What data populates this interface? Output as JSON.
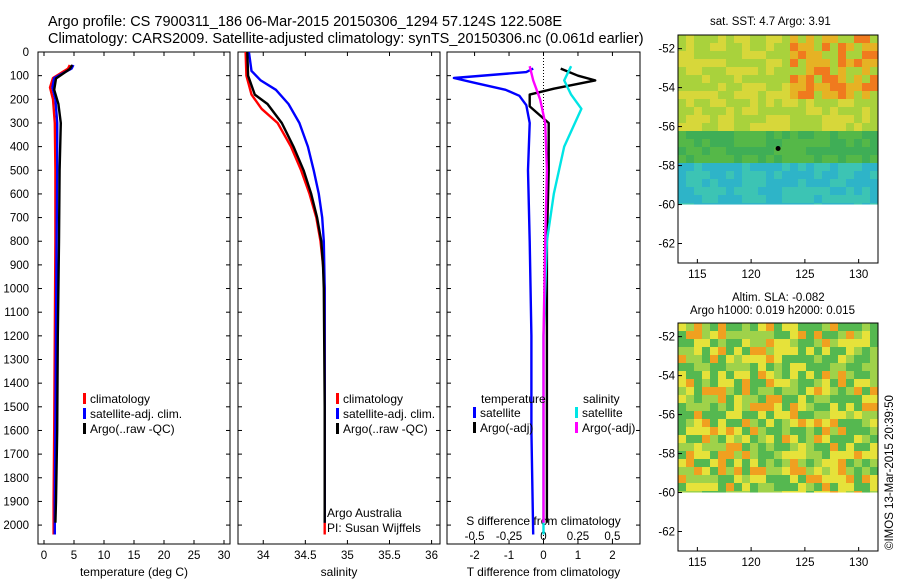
{
  "header": {
    "line1": "Argo profile: CS 7900311_186 06-Mar-2015 20150306_1294 57.124S 122.508E",
    "line2": "Climatology: CARS2009. Satellite-adjusted climatology: synTS_20150306.nc (0.061d earlier)"
  },
  "colors": {
    "climatology": "#ff0000",
    "satellite": "#0000ff",
    "argo": "#000000",
    "sal_satellite": "#00e5e5",
    "sal_argo": "#ff00ff"
  },
  "depth_ticks": [
    0,
    100,
    200,
    300,
    400,
    500,
    600,
    700,
    800,
    900,
    1000,
    1100,
    1200,
    1300,
    1400,
    1500,
    1600,
    1700,
    1800,
    1900,
    2000
  ],
  "chart_data": [
    {
      "type": "line",
      "xlabel": "temperature (deg C)",
      "xlim": [
        -1,
        31
      ],
      "ylim": [
        2080,
        0
      ],
      "xticks": [
        0,
        5,
        10,
        15,
        20,
        25,
        30
      ],
      "legend": [
        "climatology",
        "satellite-adj. clim.",
        "Argo(..raw -QC)"
      ],
      "series": [
        {
          "name": "climatology",
          "key": "climatology",
          "points": [
            [
              4.3,
              55
            ],
            [
              4.0,
              70
            ],
            [
              1.5,
              110
            ],
            [
              1.0,
              150
            ],
            [
              1.5,
              200
            ],
            [
              1.8,
              300
            ],
            [
              1.9,
              500
            ],
            [
              1.9,
              800
            ],
            [
              1.8,
              1200
            ],
            [
              1.7,
              1600
            ],
            [
              1.6,
              1900
            ],
            [
              1.6,
              2040
            ]
          ]
        },
        {
          "name": "satellite-adj. clim.",
          "key": "satellite",
          "points": [
            [
              4.9,
              55
            ],
            [
              4.6,
              70
            ],
            [
              1.7,
              110
            ],
            [
              1.4,
              150
            ],
            [
              1.9,
              200
            ],
            [
              2.2,
              300
            ],
            [
              2.2,
              500
            ],
            [
              2.1,
              800
            ],
            [
              2.0,
              1200
            ],
            [
              1.9,
              1600
            ],
            [
              1.8,
              1900
            ],
            [
              1.8,
              2040
            ]
          ]
        },
        {
          "name": "Argo(..raw -QC)",
          "key": "argo",
          "points": [
            [
              4.7,
              55
            ],
            [
              4.3,
              72
            ],
            [
              2.0,
              112
            ],
            [
              1.7,
              160
            ],
            [
              2.4,
              220
            ],
            [
              2.8,
              300
            ],
            [
              2.6,
              500
            ],
            [
              2.5,
              800
            ],
            [
              2.3,
              1200
            ],
            [
              2.2,
              1600
            ],
            [
              2.0,
              1900
            ],
            [
              1.9,
              1990
            ]
          ]
        }
      ]
    },
    {
      "type": "line",
      "xlabel": "salinity",
      "xlim": [
        33.7,
        36.1
      ],
      "ylim": [
        2080,
        0
      ],
      "xticks": [
        34,
        34.5,
        35,
        35.5,
        36
      ],
      "xtick_labels": [
        "34",
        "34.5",
        "35",
        "35.5",
        "36"
      ],
      "legend": [
        "climatology",
        "satellite-adj. clim.",
        "Argo(..raw -QC)"
      ],
      "annotations": [
        "Argo Australia",
        "PI: Susan Wijffels"
      ],
      "series": [
        {
          "name": "climatology",
          "key": "climatology",
          "points": [
            [
              33.79,
              0
            ],
            [
              33.8,
              100
            ],
            [
              33.86,
              180
            ],
            [
              33.98,
              240
            ],
            [
              34.17,
              300
            ],
            [
              34.33,
              400
            ],
            [
              34.45,
              500
            ],
            [
              34.55,
              600
            ],
            [
              34.63,
              700
            ],
            [
              34.68,
              800
            ],
            [
              34.71,
              900
            ],
            [
              34.73,
              1000
            ],
            [
              34.73,
              1200
            ],
            [
              34.73,
              1600
            ],
            [
              34.73,
              2040
            ]
          ]
        },
        {
          "name": "satellite-adj. clim.",
          "key": "satellite",
          "points": [
            [
              33.83,
              0
            ],
            [
              33.86,
              80
            ],
            [
              33.97,
              120
            ],
            [
              34.15,
              160
            ],
            [
              34.3,
              220
            ],
            [
              34.43,
              300
            ],
            [
              34.53,
              400
            ],
            [
              34.6,
              500
            ],
            [
              34.66,
              600
            ],
            [
              34.7,
              700
            ],
            [
              34.72,
              800
            ],
            [
              34.73,
              1000
            ],
            [
              34.73,
              1600
            ],
            [
              34.73,
              1990
            ]
          ]
        },
        {
          "name": "Argo(..raw -QC)",
          "key": "argo",
          "points": [
            [
              33.81,
              0
            ],
            [
              33.82,
              100
            ],
            [
              33.9,
              180
            ],
            [
              34.05,
              220
            ],
            [
              34.22,
              300
            ],
            [
              34.36,
              400
            ],
            [
              34.48,
              500
            ],
            [
              34.57,
              600
            ],
            [
              34.64,
              700
            ],
            [
              34.69,
              800
            ],
            [
              34.71,
              900
            ],
            [
              34.72,
              1000
            ],
            [
              34.73,
              1500
            ],
            [
              34.73,
              1990
            ]
          ]
        }
      ]
    },
    {
      "type": "line",
      "xlabel": "T difference from climatology",
      "xlabel_top": "S difference from climatology",
      "xlim": [
        -2.8,
        2.8
      ],
      "ylim": [
        2080,
        0
      ],
      "xticks": [
        -2,
        -1,
        0,
        1,
        2
      ],
      "xticks_top": [
        "-0.5",
        "-0.25",
        "0",
        "0.25",
        "0.5"
      ],
      "legend_groups": [
        "temperature",
        "salinity"
      ],
      "legend": [
        "satellite",
        "Argo(-adj)",
        "satellite",
        "Argo(-adj)"
      ],
      "series": [
        {
          "name": "satellite",
          "group": "temperature",
          "key": "satellite",
          "points": [
            [
              -0.3,
              70
            ],
            [
              -0.5,
              85
            ],
            [
              -2.6,
              110
            ],
            [
              -2.0,
              130
            ],
            [
              -1.1,
              160
            ],
            [
              -0.7,
              185
            ],
            [
              -0.5,
              225
            ],
            [
              -0.4,
              300
            ],
            [
              -0.45,
              500
            ],
            [
              -0.4,
              800
            ],
            [
              -0.35,
              1200
            ],
            [
              -0.35,
              1600
            ],
            [
              -0.3,
              2040
            ]
          ]
        },
        {
          "name": "Argo(-adj)",
          "group": "temperature",
          "key": "argo",
          "points": [
            [
              0.5,
              70
            ],
            [
              1.0,
              100
            ],
            [
              1.5,
              120
            ],
            [
              0.3,
              155
            ],
            [
              -0.4,
              180
            ],
            [
              -0.4,
              230
            ],
            [
              0.15,
              300
            ],
            [
              0.15,
              500
            ],
            [
              0.1,
              800
            ],
            [
              0.1,
              1200
            ],
            [
              0.1,
              1600
            ],
            [
              0.1,
              1990
            ]
          ]
        },
        {
          "name": "satellite",
          "group": "salinity",
          "key": "sal_satellite",
          "points": [
            [
              0.8,
              60
            ],
            [
              0.6,
              120
            ],
            [
              0.8,
              180
            ],
            [
              1.1,
              240
            ],
            [
              0.6,
              400
            ],
            [
              0.3,
              600
            ],
            [
              0.1,
              800
            ],
            [
              0.0,
              1200
            ],
            [
              0.0,
              1600
            ],
            [
              0.0,
              2040
            ]
          ]
        },
        {
          "name": "Argo(-adj)",
          "group": "salinity",
          "key": "sal_argo",
          "points": [
            [
              -0.4,
              60
            ],
            [
              -0.3,
              120
            ],
            [
              -0.1,
              200
            ],
            [
              0.05,
              300
            ],
            [
              0.1,
              500
            ],
            [
              0.05,
              800
            ],
            [
              0.0,
              1200
            ],
            [
              0.0,
              1600
            ],
            [
              0.0,
              1990
            ]
          ]
        }
      ]
    },
    {
      "type": "heatmap",
      "title": "sat. SST: 4.7  Argo: 3.91",
      "xlim": [
        113.2,
        131.8
      ],
      "ylim": [
        -63,
        -51.3
      ],
      "xticks": [
        115,
        120,
        125,
        130
      ],
      "yticks": [
        -52,
        -54,
        -56,
        -58,
        -60,
        -62
      ],
      "marker": {
        "lon": 122.508,
        "lat": -57.124
      }
    },
    {
      "type": "heatmap",
      "title": "Altim. SLA: -0.082",
      "subtitle": "Argo h1000: 0.019 h2000: 0.015",
      "xlim": [
        113.2,
        131.8
      ],
      "ylim": [
        -63,
        -51.3
      ],
      "xticks": [
        115,
        120,
        125,
        130
      ],
      "yticks": [
        -52,
        -54,
        -56,
        -58,
        -60,
        -62
      ],
      "side_label": "©IMOS 13-Mar-2015 20:39:50"
    }
  ]
}
